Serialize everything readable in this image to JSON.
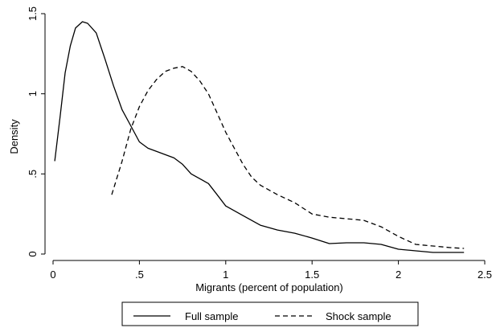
{
  "chart_data": {
    "type": "line",
    "title": "",
    "xlabel": "Migrants (percent of population)",
    "ylabel": "Density",
    "xlim": [
      0,
      2.5
    ],
    "ylim": [
      0,
      1.5
    ],
    "xticks": [
      {
        "value": 0,
        "label": "0"
      },
      {
        "value": 0.5,
        "label": ".5"
      },
      {
        "value": 1,
        "label": "1"
      },
      {
        "value": 1.5,
        "label": "1.5"
      },
      {
        "value": 2,
        "label": "2"
      },
      {
        "value": 2.5,
        "label": "2.5"
      }
    ],
    "yticks": [
      {
        "value": 0,
        "label": "0"
      },
      {
        "value": 0.5,
        "label": ".5"
      },
      {
        "value": 1,
        "label": "1"
      },
      {
        "value": 1.5,
        "label": "1.5"
      }
    ],
    "grid": false,
    "legend_position": "bottom",
    "series": [
      {
        "name": "Full sample",
        "style": "solid",
        "color": "#000000",
        "points": [
          [
            0.01,
            0.58
          ],
          [
            0.04,
            0.85
          ],
          [
            0.07,
            1.13
          ],
          [
            0.1,
            1.3
          ],
          [
            0.13,
            1.41
          ],
          [
            0.17,
            1.45
          ],
          [
            0.2,
            1.44
          ],
          [
            0.25,
            1.38
          ],
          [
            0.3,
            1.22
          ],
          [
            0.35,
            1.05
          ],
          [
            0.4,
            0.9
          ],
          [
            0.45,
            0.8
          ],
          [
            0.5,
            0.7
          ],
          [
            0.55,
            0.66
          ],
          [
            0.6,
            0.64
          ],
          [
            0.65,
            0.62
          ],
          [
            0.7,
            0.6
          ],
          [
            0.75,
            0.56
          ],
          [
            0.8,
            0.5
          ],
          [
            0.9,
            0.44
          ],
          [
            0.95,
            0.37
          ],
          [
            1.0,
            0.3
          ],
          [
            1.1,
            0.24
          ],
          [
            1.2,
            0.18
          ],
          [
            1.3,
            0.15
          ],
          [
            1.4,
            0.13
          ],
          [
            1.5,
            0.1
          ],
          [
            1.6,
            0.065
          ],
          [
            1.7,
            0.07
          ],
          [
            1.8,
            0.07
          ],
          [
            1.9,
            0.06
          ],
          [
            2.0,
            0.03
          ],
          [
            2.1,
            0.02
          ],
          [
            2.2,
            0.01
          ],
          [
            2.38,
            0.01
          ]
        ]
      },
      {
        "name": "Shock sample",
        "style": "dashed",
        "color": "#000000",
        "points": [
          [
            0.34,
            0.37
          ],
          [
            0.4,
            0.58
          ],
          [
            0.45,
            0.78
          ],
          [
            0.5,
            0.92
          ],
          [
            0.55,
            1.02
          ],
          [
            0.6,
            1.09
          ],
          [
            0.65,
            1.14
          ],
          [
            0.7,
            1.16
          ],
          [
            0.75,
            1.17
          ],
          [
            0.8,
            1.14
          ],
          [
            0.85,
            1.08
          ],
          [
            0.9,
            1.0
          ],
          [
            0.95,
            0.88
          ],
          [
            1.0,
            0.76
          ],
          [
            1.05,
            0.66
          ],
          [
            1.1,
            0.56
          ],
          [
            1.15,
            0.48
          ],
          [
            1.2,
            0.43
          ],
          [
            1.3,
            0.37
          ],
          [
            1.4,
            0.32
          ],
          [
            1.5,
            0.25
          ],
          [
            1.6,
            0.23
          ],
          [
            1.7,
            0.22
          ],
          [
            1.8,
            0.21
          ],
          [
            1.9,
            0.17
          ],
          [
            2.0,
            0.11
          ],
          [
            2.1,
            0.06
          ],
          [
            2.2,
            0.05
          ],
          [
            2.3,
            0.04
          ],
          [
            2.38,
            0.035
          ]
        ]
      }
    ]
  }
}
